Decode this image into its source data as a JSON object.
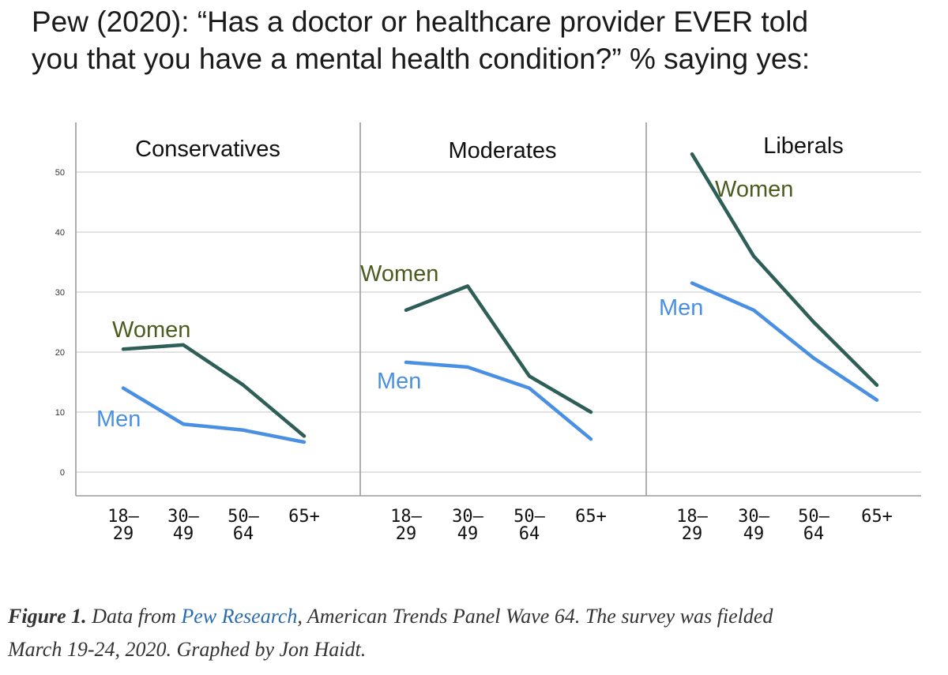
{
  "figure": {
    "title_line1": "Pew (2020): “Has a doctor or healthcare provider EVER told",
    "title_line2": "you that you have a mental health condition?” % saying yes:"
  },
  "caption": {
    "label": "Figure 1.",
    "text_before_link": "Data from",
    "link_text": "Pew Research",
    "text_after_link": ", American Trends Panel Wave 64. The survey was fielded",
    "line2": "March 19-24, 2020. Graphed by Jon Haidt."
  },
  "colors": {
    "women": "#2d5e57",
    "men": "#4a90e2",
    "women_label": "#4a5d1f",
    "men_label": "#4a90e2",
    "grid": "#d0d0d0",
    "axis": "#9a9a9a"
  },
  "chart_data": {
    "type": "line",
    "ylim": [
      0,
      50
    ],
    "yticks": [
      "0",
      "10",
      "20",
      "30",
      "40",
      "50"
    ],
    "categories": [
      "18–29",
      "30–49",
      "50–64",
      "65+"
    ],
    "category_line1": [
      "18–",
      "30–",
      "50–",
      "65+"
    ],
    "category_line2": [
      "29",
      "49",
      "64",
      ""
    ],
    "panels": [
      {
        "title": "Conservatives",
        "series": [
          {
            "name": "Women",
            "values": [
              20.5,
              21.2,
              14.5,
              6.0
            ]
          },
          {
            "name": "Men",
            "values": [
              14.0,
              8.0,
              7.0,
              5.0
            ]
          }
        ]
      },
      {
        "title": "Moderates",
        "series": [
          {
            "name": "Women",
            "values": [
              27.0,
              31.0,
              16.0,
              10.0
            ]
          },
          {
            "name": "Men",
            "values": [
              18.3,
              17.5,
              14.0,
              5.5
            ]
          }
        ]
      },
      {
        "title": "Liberals",
        "series": [
          {
            "name": "Women",
            "values": [
              53.0,
              36.0,
              25.0,
              14.5
            ]
          },
          {
            "name": "Men",
            "values": [
              31.5,
              27.0,
              19.0,
              12.0
            ]
          }
        ]
      }
    ]
  }
}
